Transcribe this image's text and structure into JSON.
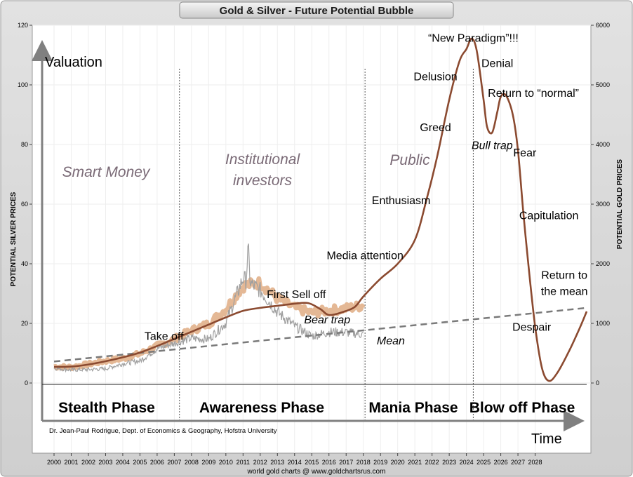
{
  "chart_data": {
    "type": "line",
    "title": "Gold & Silver - Future Potential Bubble",
    "y_left_label": "POTENTIAL SILVER PRICES",
    "y_right_label": "POTENTIAL GOLD PRICES",
    "y_left_range": [
      0,
      120
    ],
    "y_left_ticks": [
      "0",
      "20",
      "40",
      "60",
      "80",
      "100",
      "120"
    ],
    "y_right_range": [
      0,
      6000
    ],
    "y_right_ticks": [
      "0",
      "1000",
      "2000",
      "3000",
      "4000",
      "5000",
      "6000"
    ],
    "x_range": [
      2000,
      2031
    ],
    "x_ticks": [
      "2000",
      "2001",
      "2002",
      "2003",
      "2004",
      "2005",
      "2006",
      "2007",
      "2008",
      "2009",
      "2010",
      "2011",
      "2012",
      "2013",
      "2014",
      "2015",
      "2016",
      "2017",
      "2018",
      "2019",
      "2020",
      "2021",
      "2022",
      "2023",
      "2024",
      "2025",
      "2026",
      "2027",
      "2028"
    ],
    "grid": true,
    "valuation_label": "Valuation",
    "time_label": "Time",
    "credit": "Dr. Jean-Paul Rodrigue, Dept. of Economics & Geography, Hofstra University",
    "source": "world gold charts @ www.goldchartsrus.com",
    "groups": [
      {
        "label": "Smart Money",
        "lines": [
          "Smart Money"
        ]
      },
      {
        "label": "Institutional investors",
        "lines": [
          "Institutional",
          "investors"
        ]
      },
      {
        "label": "Public",
        "lines": [
          "Public"
        ]
      }
    ],
    "phases": [
      "Stealth Phase",
      "Awareness Phase",
      "Mania Phase",
      "Blow off Phase"
    ],
    "phase_dividers_x": [
      2007.3,
      2018.1,
      2024.4
    ],
    "annotations": [
      {
        "text": "Take off",
        "x": 2006.4,
        "y": 14.5,
        "italic": false
      },
      {
        "text": "First Sell off",
        "x": 2014.1,
        "y": 28.5,
        "italic": false
      },
      {
        "text": "Bear trap",
        "x": 2015.9,
        "y": 20,
        "italic": true
      },
      {
        "text": "Media attention",
        "x": 2018.1,
        "y": 41.5,
        "italic": false
      },
      {
        "text": "Mean",
        "x": 2019.6,
        "y": 13,
        "italic": true
      },
      {
        "text": "Enthusiasm",
        "x": 2020.2,
        "y": 60,
        "italic": false
      },
      {
        "text": "Greed",
        "x": 2022.2,
        "y": 84.5,
        "italic": false
      },
      {
        "text": "Delusion",
        "x": 2022.2,
        "y": 101.5,
        "italic": false
      },
      {
        "text": "“New Paradigm”!!!",
        "x": 2024.4,
        "y": 114.5,
        "italic": false
      },
      {
        "text": "Denial",
        "x": 2025.8,
        "y": 106,
        "italic": false
      },
      {
        "text": "Return to “normal”",
        "x": 2027.9,
        "y": 96,
        "italic": false
      },
      {
        "text": "Bull trap",
        "x": 2025.5,
        "y": 78.5,
        "italic": true
      },
      {
        "text": "Fear",
        "x": 2027.4,
        "y": 76,
        "italic": false
      },
      {
        "text": "Capitulation",
        "x": 2028.8,
        "y": 55,
        "italic": false
      },
      {
        "text": "Return to",
        "x": 2029.7,
        "y": 35,
        "italic": false
      },
      {
        "text": "the mean",
        "x": 2029.7,
        "y": 29.5,
        "italic": false
      },
      {
        "text": "Despair",
        "x": 2027.8,
        "y": 17.5,
        "italic": false
      }
    ],
    "series": [
      {
        "color": "#8b4a30",
        "style": "solid",
        "x": [
          2000,
          2001,
          2002,
          2003,
          2004,
          2005,
          2006,
          2007,
          2008,
          2009,
          2010,
          2011,
          2012,
          2013,
          2014,
          2014.8,
          2015.5,
          2016,
          2016.8,
          2017.5,
          2018,
          2019,
          2020,
          2021,
          2021.7,
          2022.3,
          2023,
          2023.6,
          2024,
          2024.3,
          2024.6,
          2025,
          2025.2,
          2025.5,
          2025.8,
          2026,
          2026.3,
          2026.7,
          2027,
          2027.3,
          2027.6,
          2028,
          2028.4,
          2028.8,
          2029.3,
          2030,
          2030.6,
          2031
        ],
        "y": [
          5.4,
          5.5,
          6.2,
          7.3,
          8.6,
          10.2,
          12.4,
          14.8,
          17.2,
          19.6,
          22,
          24.2,
          25.2,
          25.9,
          26.6,
          26.8,
          24.8,
          22.8,
          23.8,
          25.5,
          29,
          35,
          40,
          48,
          62,
          76,
          95,
          108,
          112,
          115.5,
          111.5,
          95,
          86,
          84,
          91,
          96,
          96.5,
          90,
          78,
          58,
          40,
          19,
          5,
          0.7,
          3.5,
          11,
          18.5,
          24
        ]
      },
      {
        "color": "#7a7a7a",
        "style": "dashed",
        "x": [
          2000,
          2031
        ],
        "y": [
          7.2,
          25.2
        ]
      },
      {
        "color": "#e3b48f",
        "style": "band",
        "x": [
          2000,
          2001,
          2002,
          2003,
          2004,
          2005,
          2006,
          2007,
          2008,
          2009,
          2010,
          2011,
          2012,
          2013,
          2014,
          2015,
          2016,
          2017,
          2018
        ],
        "y": [
          5.5,
          5.3,
          6.3,
          7.4,
          8.2,
          9.8,
          12.4,
          14.7,
          17.6,
          19.9,
          24.8,
          32.6,
          33.6,
          28.4,
          25.2,
          23.5,
          24.3,
          25,
          26
        ]
      },
      {
        "color": "#a0a0a0",
        "style": "noisy",
        "x": [
          2000,
          2001,
          2002,
          2003,
          2004,
          2005,
          2006,
          2007,
          2008,
          2009,
          2010,
          2011,
          2012,
          2013,
          2014,
          2015,
          2016,
          2017,
          2018
        ],
        "y": [
          5,
          4.4,
          4.5,
          4.8,
          6.5,
          7.4,
          11.5,
          13.4,
          15,
          14.7,
          20.2,
          35.1,
          31.1,
          23.8,
          19.1,
          15.7,
          17.1,
          17,
          16.3
        ]
      }
    ]
  }
}
